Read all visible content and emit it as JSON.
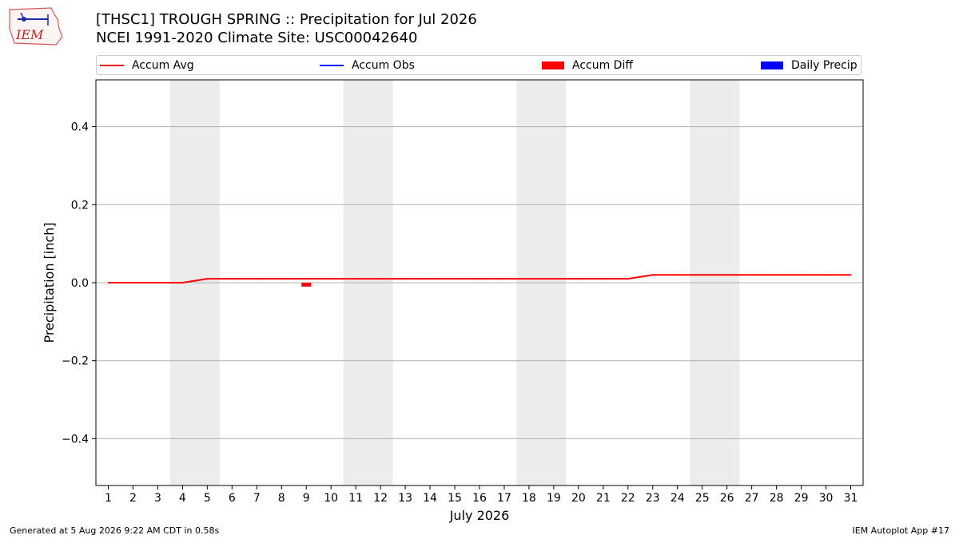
{
  "header": {
    "logo_text": "IEM",
    "title_line1": "[THSC1] TROUGH SPRING :: Precipitation for Jul 2026",
    "title_line2": "NCEI 1991-2020 Climate Site: USC00042640"
  },
  "legend": {
    "items": [
      {
        "label": "Accum Avg",
        "kind": "line",
        "color": "#ff0000"
      },
      {
        "label": "Accum Obs",
        "kind": "line",
        "color": "#0000ff"
      },
      {
        "label": "Accum Diff",
        "kind": "box",
        "color": "#ff0000"
      },
      {
        "label": "Daily Precip",
        "kind": "box",
        "color": "#0000ff"
      }
    ]
  },
  "chart_data": {
    "type": "line",
    "xlabel": "July 2026",
    "ylabel": "Precipitation [inch]",
    "x": [
      1,
      2,
      3,
      4,
      5,
      6,
      7,
      8,
      9,
      10,
      11,
      12,
      13,
      14,
      15,
      16,
      17,
      18,
      19,
      20,
      21,
      22,
      23,
      24,
      25,
      26,
      27,
      28,
      29,
      30,
      31
    ],
    "xlim": [
      0.5,
      31.5
    ],
    "ylim": [
      -0.52,
      0.52
    ],
    "yticks": [
      -0.4,
      -0.2,
      0.0,
      0.2,
      0.4
    ],
    "ytick_labels": [
      "−0.4",
      "−0.2",
      "0.0",
      "0.2",
      "0.4"
    ],
    "grid": true,
    "weekend_shading": [
      [
        3.5,
        5.5
      ],
      [
        10.5,
        12.5
      ],
      [
        17.5,
        19.5
      ],
      [
        24.5,
        26.5
      ]
    ],
    "series": [
      {
        "name": "Accum Avg",
        "kind": "line",
        "color": "#ff0000",
        "values": [
          0,
          0,
          0,
          0,
          0.01,
          0.01,
          0.01,
          0.01,
          0.01,
          0.01,
          0.01,
          0.01,
          0.01,
          0.01,
          0.01,
          0.01,
          0.01,
          0.01,
          0.01,
          0.01,
          0.01,
          0.01,
          0.02,
          0.02,
          0.02,
          0.02,
          0.02,
          0.02,
          0.02,
          0.02,
          0.02
        ]
      },
      {
        "name": "Accum Diff",
        "kind": "bar",
        "color": "#ff0000",
        "points": [
          {
            "x": 9,
            "value": -0.01
          }
        ]
      }
    ]
  },
  "footer": {
    "generated": "Generated at 5 Aug 2026 9:22 AM CDT in 0.58s",
    "app": "IEM Autoplot App #17"
  }
}
